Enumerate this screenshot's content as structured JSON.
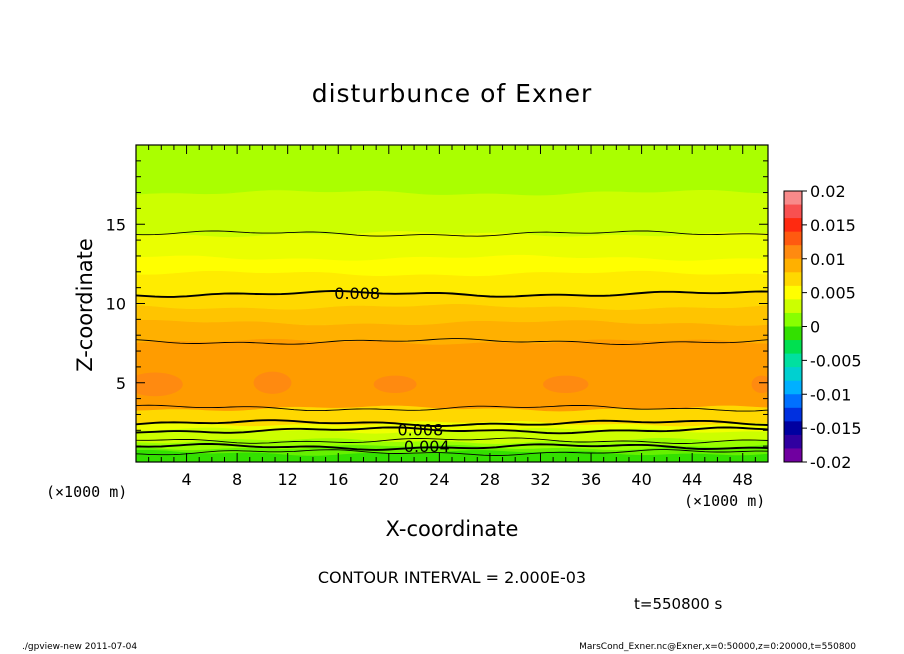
{
  "chart_data": {
    "type": "heatmap",
    "title": "disturbunce of Exner",
    "xlabel": "X-coordinate",
    "ylabel": "Z-coordinate",
    "x_unit_left": "(×1000 m)",
    "x_unit_right": "(×1000 m)",
    "xlim": [
      0,
      50
    ],
    "ylim": [
      0,
      20
    ],
    "x_ticks": [
      4,
      8,
      12,
      16,
      20,
      24,
      28,
      32,
      36,
      40,
      44,
      48
    ],
    "y_ticks": [
      5,
      10,
      15
    ],
    "colorbar": {
      "range": [
        -0.02,
        0.02
      ],
      "tick_labels": [
        "0.02",
        "0.015",
        "0.01",
        "0.005",
        "0",
        "-0.005",
        "-0.01",
        "-0.015",
        "-0.02"
      ],
      "tick_values": [
        0.02,
        0.015,
        0.01,
        0.005,
        0,
        -0.005,
        -0.01,
        -0.015,
        -0.02
      ],
      "colors": [
        "#f88a8a",
        "#f85050",
        "#ff2a10",
        "#ff5a10",
        "#ff8a10",
        "#ffb000",
        "#ffd800",
        "#ffff00",
        "#ccff00",
        "#88ff00",
        "#33e000",
        "#00e050",
        "#00e0a0",
        "#00d0d0",
        "#00b0ff",
        "#0070ff",
        "#0030e0",
        "#0000a0",
        "#3000a0",
        "#7000a0"
      ]
    },
    "contours": [
      {
        "z": 0.6,
        "value": 0.002
      },
      {
        "z": 0.95,
        "value": 0.004,
        "label": "0.004"
      },
      {
        "z": 1.35,
        "value": 0.006
      },
      {
        "z": 2.0,
        "value": 0.008,
        "label": "0.008"
      },
      {
        "z": 2.45,
        "value": 0.008
      },
      {
        "z": 3.4,
        "value": 0.01
      },
      {
        "z": 7.6,
        "value": 0.01
      },
      {
        "z": 10.6,
        "value": 0.008,
        "label": "0.008"
      },
      {
        "z": 14.4,
        "value": 0.006
      }
    ],
    "field_bands": [
      {
        "z0": 0.0,
        "z1": 0.6,
        "color": "#33e000"
      },
      {
        "z0": 0.6,
        "z1": 0.95,
        "color": "#66f000"
      },
      {
        "z0": 0.95,
        "z1": 1.35,
        "color": "#99ff00"
      },
      {
        "z0": 1.35,
        "z1": 2.0,
        "color": "#ccff00"
      },
      {
        "z0": 2.0,
        "z1": 2.45,
        "color": "#f0ff00"
      },
      {
        "z0": 2.45,
        "z1": 3.4,
        "color": "#ffd800"
      },
      {
        "z0": 3.4,
        "z1": 7.6,
        "color": "#ff9c00"
      },
      {
        "z0": 7.6,
        "z1": 8.8,
        "color": "#ffb000"
      },
      {
        "z0": 8.8,
        "z1": 9.8,
        "color": "#ffc400"
      },
      {
        "z0": 9.8,
        "z1": 10.6,
        "color": "#ffd800"
      },
      {
        "z0": 10.6,
        "z1": 11.9,
        "color": "#ffec00"
      },
      {
        "z0": 11.9,
        "z1": 12.9,
        "color": "#ffff00"
      },
      {
        "z0": 12.9,
        "z1": 14.4,
        "color": "#eaff00"
      },
      {
        "z0": 14.4,
        "z1": 17.0,
        "color": "#ccff00"
      },
      {
        "z0": 17.0,
        "z1": 20.0,
        "color": "#aaff00"
      }
    ],
    "max_patches": [
      {
        "x": 1.5,
        "z": 4.9,
        "rx": 2.2,
        "rz": 0.75
      },
      {
        "x": 10.8,
        "z": 5.0,
        "rx": 1.5,
        "rz": 0.7
      },
      {
        "x": 20.5,
        "z": 4.9,
        "rx": 1.7,
        "rz": 0.55
      },
      {
        "x": 34.0,
        "z": 4.9,
        "rx": 1.8,
        "rz": 0.55
      },
      {
        "x": 49.5,
        "z": 4.9,
        "rx": 0.8,
        "rz": 0.55
      }
    ],
    "max_color": "#ff8a10"
  },
  "contour_interval": "CONTOUR INTERVAL = 2.000E-03",
  "time_label": "t=550800 s",
  "footer_left": "./gpview-new   2011-07-04",
  "footer_right": "MarsCond_Exner.nc@Exner,x=0:50000,z=0:20000,t=550800"
}
